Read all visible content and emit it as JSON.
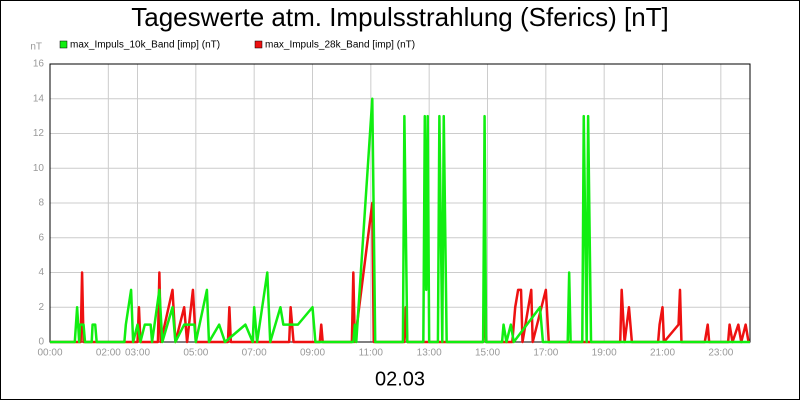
{
  "chart_data": {
    "type": "line",
    "title": "Tageswerte atm. Impulsstrahlung (Sferics) [nT]",
    "y_label": "nT",
    "x_label": "02.03",
    "xlim": [
      0,
      24
    ],
    "xticks": [
      {
        "value": 0,
        "label": "00:00"
      },
      {
        "value": 2,
        "label": "02:00"
      },
      {
        "value": 3,
        "label": "03:00"
      },
      {
        "value": 5,
        "label": "05:00"
      },
      {
        "value": 7,
        "label": "07:00"
      },
      {
        "value": 9,
        "label": "09:00"
      },
      {
        "value": 11,
        "label": "11:00"
      },
      {
        "value": 13,
        "label": "13:00"
      },
      {
        "value": 15,
        "label": "15:00"
      },
      {
        "value": 17,
        "label": "17:00"
      },
      {
        "value": 19,
        "label": "19:00"
      },
      {
        "value": 21,
        "label": "21:00"
      },
      {
        "value": 23,
        "label": "23:00"
      }
    ],
    "ylim": [
      0,
      16
    ],
    "yticks": [
      0,
      2,
      4,
      6,
      8,
      10,
      12,
      14,
      16
    ],
    "grid": true,
    "legend": "top-left",
    "series": [
      {
        "name": "max_Impuls_28k_Band [imp] (nT)",
        "color": "#ee1111",
        "x": [
          0,
          1.05,
          1.1,
          1.15,
          3.0,
          3.05,
          3.1,
          3.7,
          3.75,
          3.8,
          4.2,
          4.3,
          4.6,
          4.7,
          4.9,
          5.0,
          6.1,
          6.15,
          6.2,
          8.2,
          8.25,
          8.35,
          9.25,
          9.3,
          9.35,
          10.35,
          10.4,
          10.45,
          11.05,
          11.1,
          12.15,
          12.2,
          12.25,
          14.85,
          14.9,
          14.95,
          15.85,
          15.95,
          16.05,
          16.15,
          16.2,
          16.5,
          16.55,
          17.0,
          17.1,
          19.55,
          19.6,
          19.7,
          19.85,
          19.95,
          20.85,
          20.9,
          21.0,
          21.05,
          21.55,
          21.6,
          21.65,
          22.45,
          22.55,
          22.6,
          23.25,
          23.3,
          23.4,
          23.6,
          23.7,
          23.85,
          23.95
        ],
        "values": [
          0,
          0,
          4,
          0,
          0,
          2,
          0,
          0,
          4,
          0,
          3,
          0,
          2,
          0,
          3,
          0,
          0,
          2,
          0,
          0,
          2,
          0,
          0,
          1,
          0,
          0,
          4,
          0,
          8,
          0,
          0,
          2,
          0,
          0,
          2,
          0,
          0,
          2,
          3,
          3,
          0,
          3,
          0,
          3,
          0,
          0,
          3,
          0,
          2,
          0,
          0,
          1,
          2,
          0,
          1,
          3,
          0,
          0,
          1,
          0,
          0,
          1,
          0,
          1,
          0,
          1,
          0
        ]
      },
      {
        "name": "max_Impuls_10k_Band [imp] (nT)",
        "color": "#11ee11",
        "x": [
          0,
          0.85,
          0.93,
          1.0,
          1.03,
          1.15,
          1.2,
          1.43,
          1.46,
          1.55,
          1.6,
          2.55,
          2.6,
          2.78,
          2.85,
          3.0,
          3.1,
          3.25,
          3.45,
          3.5,
          3.75,
          3.85,
          4.2,
          4.3,
          4.6,
          4.95,
          5.0,
          5.38,
          5.45,
          5.8,
          6.0,
          6.7,
          6.95,
          7.0,
          7.1,
          7.45,
          7.55,
          7.9,
          8.0,
          8.5,
          9.0,
          9.1,
          10.4,
          10.45,
          10.5,
          11.05,
          11.15,
          12.1,
          12.15,
          12.25,
          12.8,
          12.85,
          12.9,
          12.95,
          13.0,
          13.3,
          13.35,
          13.45,
          13.5,
          13.6,
          14.85,
          14.9,
          14.95,
          15.5,
          15.55,
          15.65,
          15.8,
          15.9,
          16.8,
          16.9,
          17.75,
          17.8,
          17.85,
          18.25,
          18.3,
          18.4,
          18.45,
          18.55,
          24
        ],
        "values": [
          0,
          0,
          2,
          0,
          1,
          1,
          0,
          0,
          1,
          1,
          0,
          0,
          1,
          3,
          0,
          1,
          0,
          1,
          1,
          0,
          3,
          0,
          2,
          0,
          1,
          1,
          0,
          3,
          0,
          1,
          0,
          1,
          0,
          2,
          0,
          4,
          0,
          2,
          1,
          1,
          2,
          0,
          0,
          1,
          0,
          14,
          0,
          0,
          13,
          0,
          0,
          13,
          3,
          13,
          0,
          0,
          13,
          0,
          13,
          0,
          0,
          13,
          0,
          0,
          1,
          0,
          1,
          0,
          2,
          0,
          0,
          4,
          0,
          0,
          13,
          0,
          13,
          0,
          0
        ]
      }
    ]
  }
}
